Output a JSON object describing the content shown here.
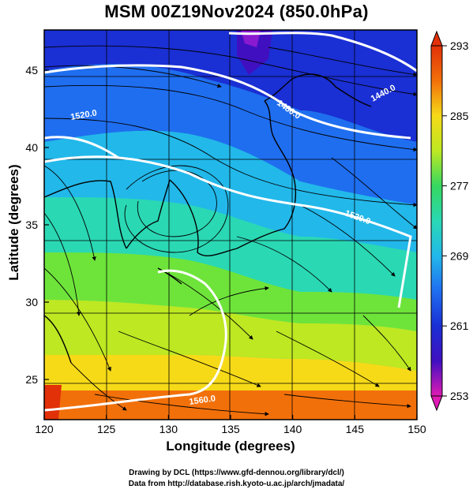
{
  "title": "MSM 00Z19Nov2024 (850.0hPa)",
  "xlabel": "Longitude (degrees)",
  "ylabel": "Latitude  (degrees)",
  "credits": {
    "line1": "Drawing by DCL (https://www.gfd-dennou.org/library/dcl/)",
    "line2": "Data from http://database.rish.kyoto-u.ac.jp/arch/jmadata/"
  },
  "chart_data": {
    "type": "heatmap",
    "description": "850hPa temperature (K) shaded, geopotential height contours (m), wind streamlines, coastlines",
    "x_range": [
      120,
      150
    ],
    "y_range": [
      22.4,
      47.6
    ],
    "x_ticks": [
      120,
      125,
      130,
      135,
      140,
      145,
      150
    ],
    "y_ticks": [
      25,
      30,
      35,
      40,
      45
    ],
    "colorbar": {
      "min": 253,
      "max": 293,
      "tick_labels": [
        293,
        285,
        277,
        269,
        261,
        253
      ],
      "colors": [
        "#e01ab4",
        "#4010c0",
        "#1a2fd4",
        "#1f6ef0",
        "#22b8ea",
        "#2ad8b4",
        "#36d860",
        "#6ee43a",
        "#bde822",
        "#f6da18",
        "#f8a410",
        "#f2700a",
        "#e23008"
      ]
    },
    "height_contours": [
      {
        "label": "1440.0"
      },
      {
        "label": "1480.0"
      },
      {
        "label": "1520.0"
      },
      {
        "label": "1520.0"
      },
      {
        "label": "1560.0"
      }
    ],
    "legend_position": "right"
  }
}
